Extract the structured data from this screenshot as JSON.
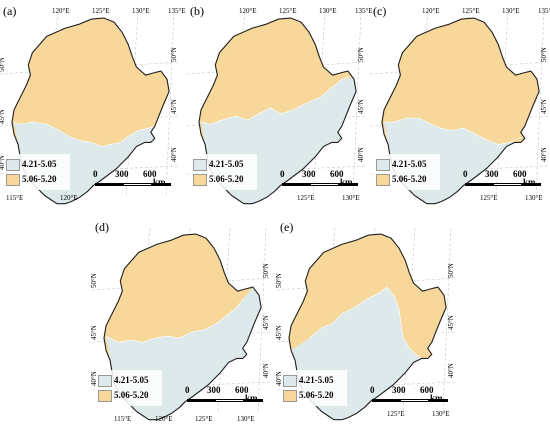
{
  "colors": {
    "low": "#dde9ea",
    "high": "#f8d79a",
    "outline": "#222222",
    "grid": "#c8c8c8"
  },
  "legend": {
    "items": [
      {
        "label": "4.21-5.05",
        "color": "#dde9ea"
      },
      {
        "label": "5.06-5.20",
        "color": "#f8d79a"
      }
    ]
  },
  "scalebar": {
    "labels": [
      "0",
      "300",
      "600"
    ],
    "unit": "km"
  },
  "panels": [
    {
      "label": "(a)",
      "top_ticks": [
        "120°E",
        "125°E",
        "130°E",
        "135°E"
      ],
      "bottom_ticks": [
        "115°E",
        "120°E"
      ],
      "right_ticks": [
        "50°N",
        "45°N",
        "40°N"
      ],
      "left_ticks": [
        "50°N",
        "45°N",
        "40°N"
      ]
    },
    {
      "label": "(b)",
      "top_ticks": [
        "120°E",
        "125°E",
        "130°E",
        "135°E"
      ],
      "bottom_ticks": [
        "125°E",
        "130°E"
      ],
      "right_ticks": [
        "50°N",
        "45°N",
        "40°N"
      ],
      "left_ticks": []
    },
    {
      "label": "(c)",
      "top_ticks": [
        "120°E",
        "125°E",
        "130°E",
        "135°E"
      ],
      "bottom_ticks": [
        "125°E",
        "130°E"
      ],
      "right_ticks": [
        "50°N",
        "45°N",
        "40°N"
      ],
      "left_ticks": []
    },
    {
      "label": "(d)",
      "top_ticks": [],
      "bottom_ticks": [
        "115°E",
        "120°E",
        "125°E",
        "130°E"
      ],
      "right_ticks": [
        "50°N",
        "45°N",
        "40°N"
      ],
      "left_ticks": [
        "50°N",
        "45°N",
        "40°N"
      ]
    },
    {
      "label": "(e)",
      "top_ticks": [],
      "bottom_ticks": [
        "125°E",
        "130°E"
      ],
      "right_ticks": [
        "50°N",
        "45°N",
        "40°N"
      ],
      "left_ticks": [
        "50°N",
        "45°N",
        "40°N"
      ]
    }
  ]
}
